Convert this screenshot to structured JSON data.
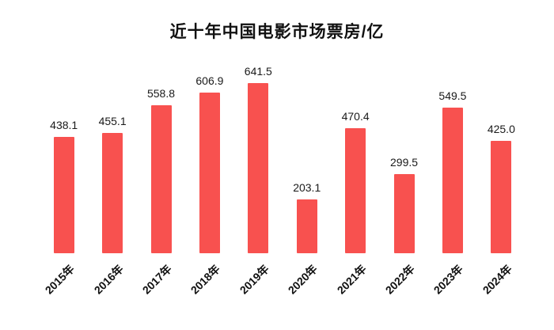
{
  "chart_data": {
    "type": "bar",
    "title": "近十年中国电影市场票房/亿",
    "categories": [
      "2015年",
      "2016年",
      "2017年",
      "2018年",
      "2019年",
      "2020年",
      "2021年",
      "2022年",
      "2023年",
      "2024年"
    ],
    "values": [
      438.1,
      455.1,
      558.8,
      606.9,
      641.5,
      203.1,
      470.4,
      299.5,
      549.5,
      425.0
    ],
    "xlabel": "",
    "ylabel": "",
    "ylim": [
      0,
      700
    ],
    "grid": false,
    "legend": "none",
    "bar_color": "#f8514f",
    "value_label_color": "#1a1a1a",
    "value_label_format": "one-decimal"
  }
}
